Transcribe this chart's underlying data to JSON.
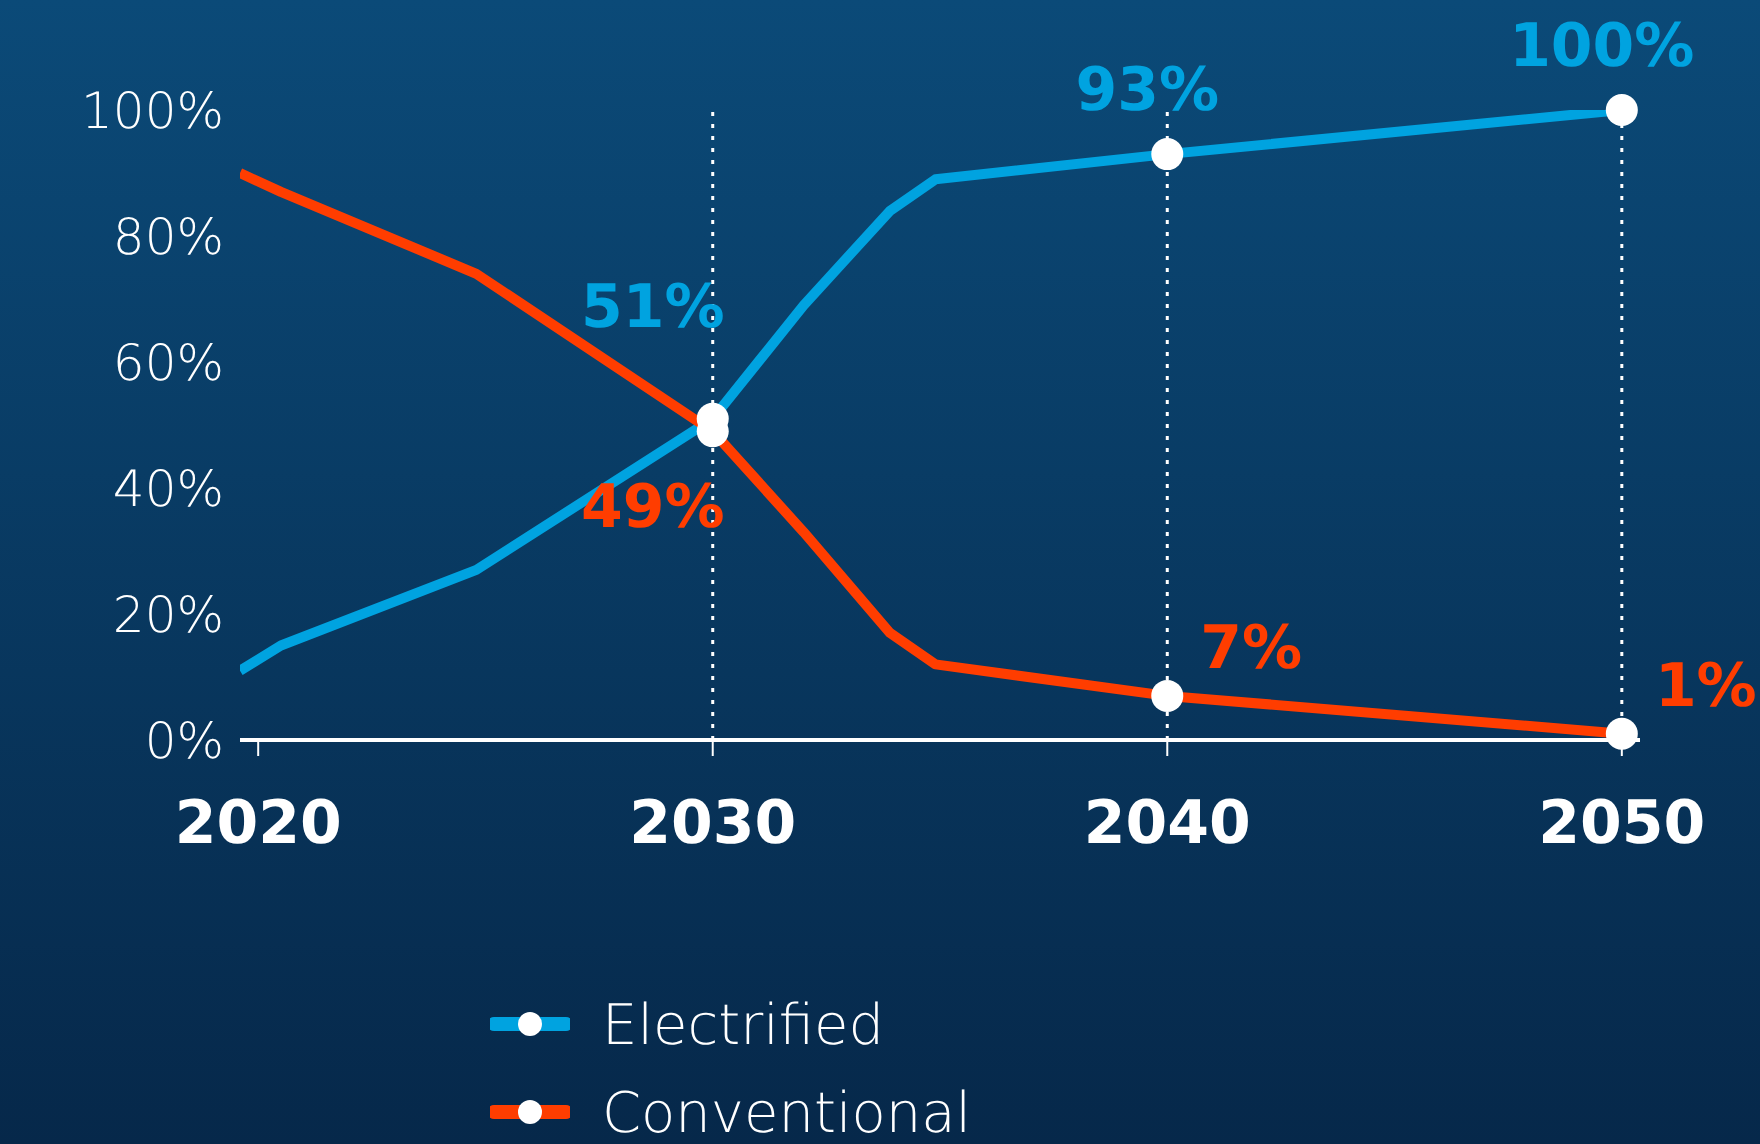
{
  "chart_data": {
    "type": "line",
    "xlim": [
      2019.6,
      2050.4
    ],
    "xticks": [
      2020,
      2030,
      2040,
      2050
    ],
    "ylim": [
      0,
      100
    ],
    "yticks": [
      {
        "value": 0,
        "label": "0%"
      },
      {
        "value": 20,
        "label": "20%"
      },
      {
        "value": 40,
        "label": "40%"
      },
      {
        "value": 60,
        "label": "60%"
      },
      {
        "value": 80,
        "label": "80%"
      },
      {
        "value": 100,
        "label": "100%"
      }
    ],
    "series": [
      {
        "name": "Electrified",
        "color": "#00a3e0",
        "x": [
          2019.6,
          2020.5,
          2024.8,
          2030,
          2031,
          2032,
          2033.9,
          2034.9,
          2040,
          2050
        ],
        "values": [
          11,
          15,
          27,
          51,
          60,
          69,
          84,
          89,
          93,
          100
        ],
        "value_labels": [
          null,
          null,
          null,
          "51%",
          null,
          null,
          null,
          null,
          "93%",
          "100%"
        ]
      },
      {
        "name": "Conventional",
        "color": "#ff3d00",
        "x": [
          2019.6,
          2020.5,
          2024.8,
          2030,
          2031,
          2032,
          2033.9,
          2034.9,
          2040,
          2050
        ],
        "values": [
          90,
          87,
          74,
          49,
          41,
          33,
          17,
          12,
          7,
          1
        ],
        "value_labels": [
          null,
          null,
          null,
          "49%",
          null,
          null,
          null,
          null,
          "7%",
          "1%"
        ]
      }
    ],
    "ref_lines": [
      {
        "axis": "x",
        "value": 2030,
        "color": "#ffffff",
        "line_style": "dotted"
      },
      {
        "axis": "x",
        "value": 2040,
        "color": "#ffffff",
        "line_style": "dotted"
      },
      {
        "axis": "x",
        "value": 2050,
        "color": "#ffffff",
        "line_style": "dotted"
      }
    ],
    "grid": false,
    "legend": "bottom"
  }
}
